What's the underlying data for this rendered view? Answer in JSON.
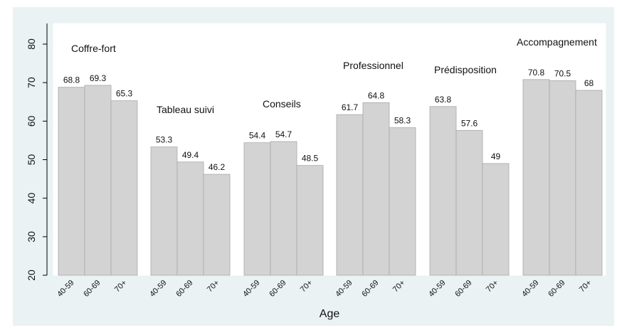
{
  "chart_data": {
    "type": "bar",
    "xlabel": "Age",
    "ylabel": "",
    "ylim": [
      20,
      85
    ],
    "yticks": [
      20,
      30,
      40,
      50,
      60,
      70,
      80
    ],
    "grid": false,
    "legend": "none",
    "colors": {
      "panel": "#eaf2f3",
      "plot": "#ffffff",
      "bar": "#d3d3d3",
      "bar_edge": "#a9a9a9"
    },
    "groups": [
      {
        "name": "Coffre-fort",
        "categories": [
          "40-59",
          "60-69",
          "70+"
        ],
        "values": [
          68.8,
          69.3,
          65.3
        ],
        "labels": [
          "68.8",
          "69.3",
          "65.3"
        ]
      },
      {
        "name": "Tableau suivi",
        "categories": [
          "40-59",
          "60-69",
          "70+"
        ],
        "values": [
          53.3,
          49.4,
          46.2
        ],
        "labels": [
          "53.3",
          "49.4",
          "46.2"
        ]
      },
      {
        "name": "Conseils",
        "categories": [
          "40-59",
          "60-69",
          "70+"
        ],
        "values": [
          54.4,
          54.7,
          48.5
        ],
        "labels": [
          "54.4",
          "54.7",
          "48.5"
        ]
      },
      {
        "name": "Professionnel",
        "categories": [
          "40-59",
          "60-69",
          "70+"
        ],
        "values": [
          61.7,
          64.8,
          58.3
        ],
        "labels": [
          "61.7",
          "64.8",
          "58.3"
        ]
      },
      {
        "name": "Prédisposition",
        "categories": [
          "40-59",
          "60-69",
          "70+"
        ],
        "values": [
          63.8,
          57.6,
          49
        ],
        "labels": [
          "63.8",
          "57.6",
          "49"
        ]
      },
      {
        "name": "Accompagnement",
        "categories": [
          "40-59",
          "60-69",
          "70+"
        ],
        "values": [
          70.8,
          70.5,
          68
        ],
        "labels": [
          "70.8",
          "70.5",
          "68"
        ]
      }
    ]
  }
}
